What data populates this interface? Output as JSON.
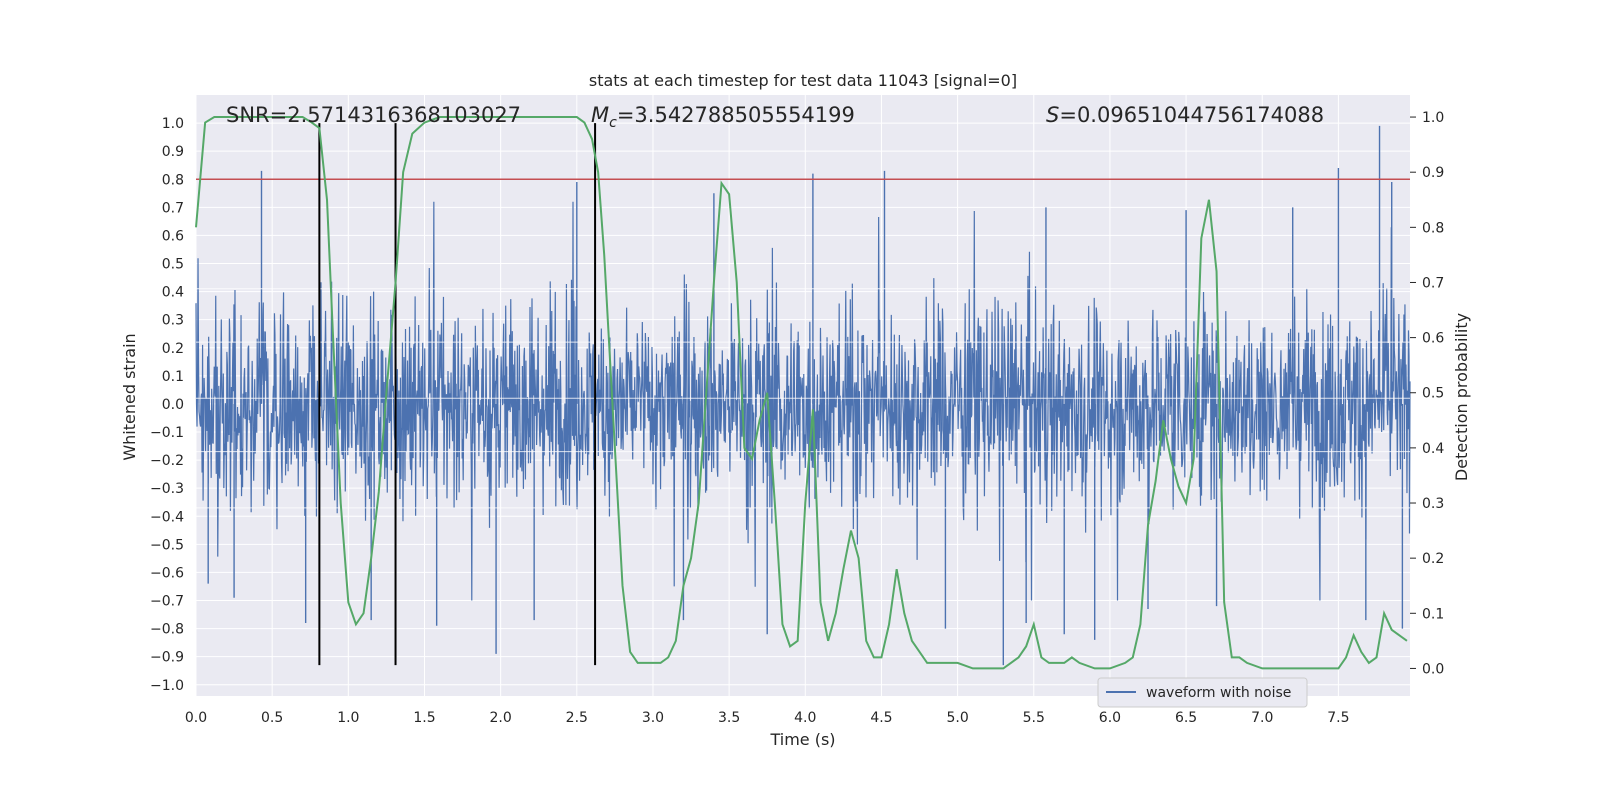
{
  "chart_data": {
    "type": "line",
    "title": "stats at each timestep for test data 11043 [signal=0]",
    "xlabel": "Time (s)",
    "ylabel": "Whitened strain",
    "ylabel_right": "Detection probability",
    "xlim": [
      0.0,
      7.97
    ],
    "ylim": [
      -1.04,
      1.1
    ],
    "ylim_right": [
      -0.05,
      1.04
    ],
    "x_ticks": [
      "0.0",
      "0.5",
      "1.0",
      "1.5",
      "2.0",
      "2.5",
      "3.0",
      "3.5",
      "4.0",
      "4.5",
      "5.0",
      "5.5",
      "6.0",
      "6.5",
      "7.0",
      "7.5"
    ],
    "y_ticks": [
      "−1.0",
      "−0.9",
      "−0.8",
      "−0.7",
      "−0.6",
      "−0.5",
      "−0.4",
      "−0.3",
      "−0.2",
      "−0.1",
      "0.0",
      "0.1",
      "0.2",
      "0.3",
      "0.4",
      "0.5",
      "0.6",
      "0.7",
      "0.8",
      "0.9",
      "1.0"
    ],
    "y_right_ticks": [
      "0.0",
      "0.1",
      "0.2",
      "0.3",
      "0.4",
      "0.5",
      "0.6",
      "0.7",
      "0.8",
      "0.9",
      "1.0"
    ],
    "grid": true,
    "legend_position": "lower-right",
    "annotations": {
      "snr": "SNR=2.5714316368103027",
      "mc_symbol": "M",
      "mc_sub": "c",
      "mc_value": "=3.542788505554199",
      "s_symbol": "S",
      "s_value": "=0.09651044756174088"
    },
    "threshold": 0.8,
    "vertical_lines_x": [
      0.81,
      1.31,
      2.62
    ],
    "series": [
      {
        "name": "waveform with noise",
        "axis": "left",
        "color": "#4c72b0",
        "render": "dense-noise",
        "description_values": {
          "typical_band": [
            -0.4,
            0.4
          ],
          "max": 1.0,
          "min": -0.95
        },
        "peaks": [
          [
            0.43,
            0.83
          ],
          [
            0.25,
            -0.69
          ],
          [
            0.08,
            -0.64
          ],
          [
            0.72,
            -0.78
          ],
          [
            1.15,
            -0.77
          ],
          [
            1.58,
            -0.79
          ],
          [
            1.97,
            -0.89
          ],
          [
            2.22,
            -0.77
          ],
          [
            2.5,
            0.79
          ],
          [
            3.2,
            -0.77
          ],
          [
            3.4,
            0.75
          ],
          [
            3.75,
            -0.82
          ],
          [
            4.05,
            0.82
          ],
          [
            4.52,
            0.83
          ],
          [
            4.92,
            -0.8
          ],
          [
            5.3,
            -0.93
          ],
          [
            5.45,
            -0.78
          ],
          [
            5.58,
            0.7
          ],
          [
            5.7,
            -0.82
          ],
          [
            5.9,
            -0.84
          ],
          [
            6.25,
            -0.73
          ],
          [
            6.5,
            0.69
          ],
          [
            6.7,
            -0.72
          ],
          [
            7.2,
            0.7
          ],
          [
            7.5,
            0.84
          ],
          [
            7.68,
            -0.77
          ],
          [
            7.77,
            0.99
          ],
          [
            7.85,
            0.79
          ],
          [
            7.92,
            -0.8
          ]
        ]
      },
      {
        "name": "",
        "axis": "right",
        "color": "#55a868",
        "x": [
          0.0,
          0.06,
          0.12,
          0.2,
          0.3,
          0.4,
          0.5,
          0.6,
          0.7,
          0.76,
          0.81,
          0.86,
          0.9,
          0.95,
          1.0,
          1.05,
          1.1,
          1.15,
          1.2,
          1.25,
          1.31,
          1.36,
          1.42,
          1.5,
          1.6,
          1.8,
          2.0,
          2.2,
          2.4,
          2.5,
          2.55,
          2.6,
          2.64,
          2.68,
          2.72,
          2.76,
          2.8,
          2.85,
          2.9,
          2.95,
          3.0,
          3.05,
          3.1,
          3.15,
          3.2,
          3.25,
          3.3,
          3.35,
          3.4,
          3.45,
          3.5,
          3.55,
          3.6,
          3.65,
          3.7,
          3.75,
          3.8,
          3.85,
          3.9,
          3.95,
          4.0,
          4.05,
          4.1,
          4.15,
          4.2,
          4.25,
          4.3,
          4.35,
          4.4,
          4.45,
          4.5,
          4.55,
          4.6,
          4.65,
          4.7,
          4.8,
          4.9,
          5.0,
          5.1,
          5.2,
          5.3,
          5.35,
          5.4,
          5.45,
          5.5,
          5.55,
          5.6,
          5.65,
          5.7,
          5.75,
          5.8,
          5.9,
          6.0,
          6.1,
          6.15,
          6.2,
          6.25,
          6.3,
          6.35,
          6.4,
          6.45,
          6.5,
          6.55,
          6.6,
          6.65,
          6.7,
          6.75,
          6.8,
          6.85,
          6.9,
          7.0,
          7.1,
          7.2,
          7.3,
          7.4,
          7.5,
          7.55,
          7.6,
          7.65,
          7.7,
          7.75,
          7.8,
          7.85,
          7.9,
          7.95
        ],
        "y": [
          0.8,
          0.99,
          1.0,
          1.0,
          1.0,
          1.0,
          1.0,
          1.0,
          1.0,
          0.99,
          0.98,
          0.85,
          0.6,
          0.3,
          0.12,
          0.08,
          0.1,
          0.2,
          0.32,
          0.5,
          0.7,
          0.9,
          0.97,
          0.99,
          1.0,
          1.0,
          1.0,
          1.0,
          1.0,
          1.0,
          0.99,
          0.96,
          0.9,
          0.75,
          0.55,
          0.35,
          0.15,
          0.03,
          0.01,
          0.01,
          0.01,
          0.01,
          0.02,
          0.05,
          0.15,
          0.2,
          0.3,
          0.5,
          0.7,
          0.88,
          0.86,
          0.7,
          0.4,
          0.38,
          0.45,
          0.5,
          0.3,
          0.08,
          0.04,
          0.05,
          0.3,
          0.47,
          0.12,
          0.05,
          0.1,
          0.18,
          0.25,
          0.2,
          0.05,
          0.02,
          0.02,
          0.08,
          0.18,
          0.1,
          0.05,
          0.01,
          0.01,
          0.01,
          0.0,
          0.0,
          0.0,
          0.01,
          0.02,
          0.04,
          0.08,
          0.02,
          0.01,
          0.01,
          0.01,
          0.02,
          0.01,
          0.0,
          0.0,
          0.01,
          0.02,
          0.08,
          0.26,
          0.34,
          0.45,
          0.38,
          0.33,
          0.3,
          0.38,
          0.78,
          0.85,
          0.72,
          0.12,
          0.02,
          0.02,
          0.01,
          0.0,
          0.0,
          0.0,
          0.0,
          0.0,
          0.0,
          0.02,
          0.06,
          0.03,
          0.01,
          0.02,
          0.1,
          0.07,
          0.06,
          0.05
        ]
      }
    ]
  },
  "colors": {
    "plot_bg": "#eaeaf2",
    "grid": "#ffffff",
    "noise": "#4c72b0",
    "probability": "#55a868",
    "threshold": "#c44e52",
    "vlines": "#000000"
  }
}
